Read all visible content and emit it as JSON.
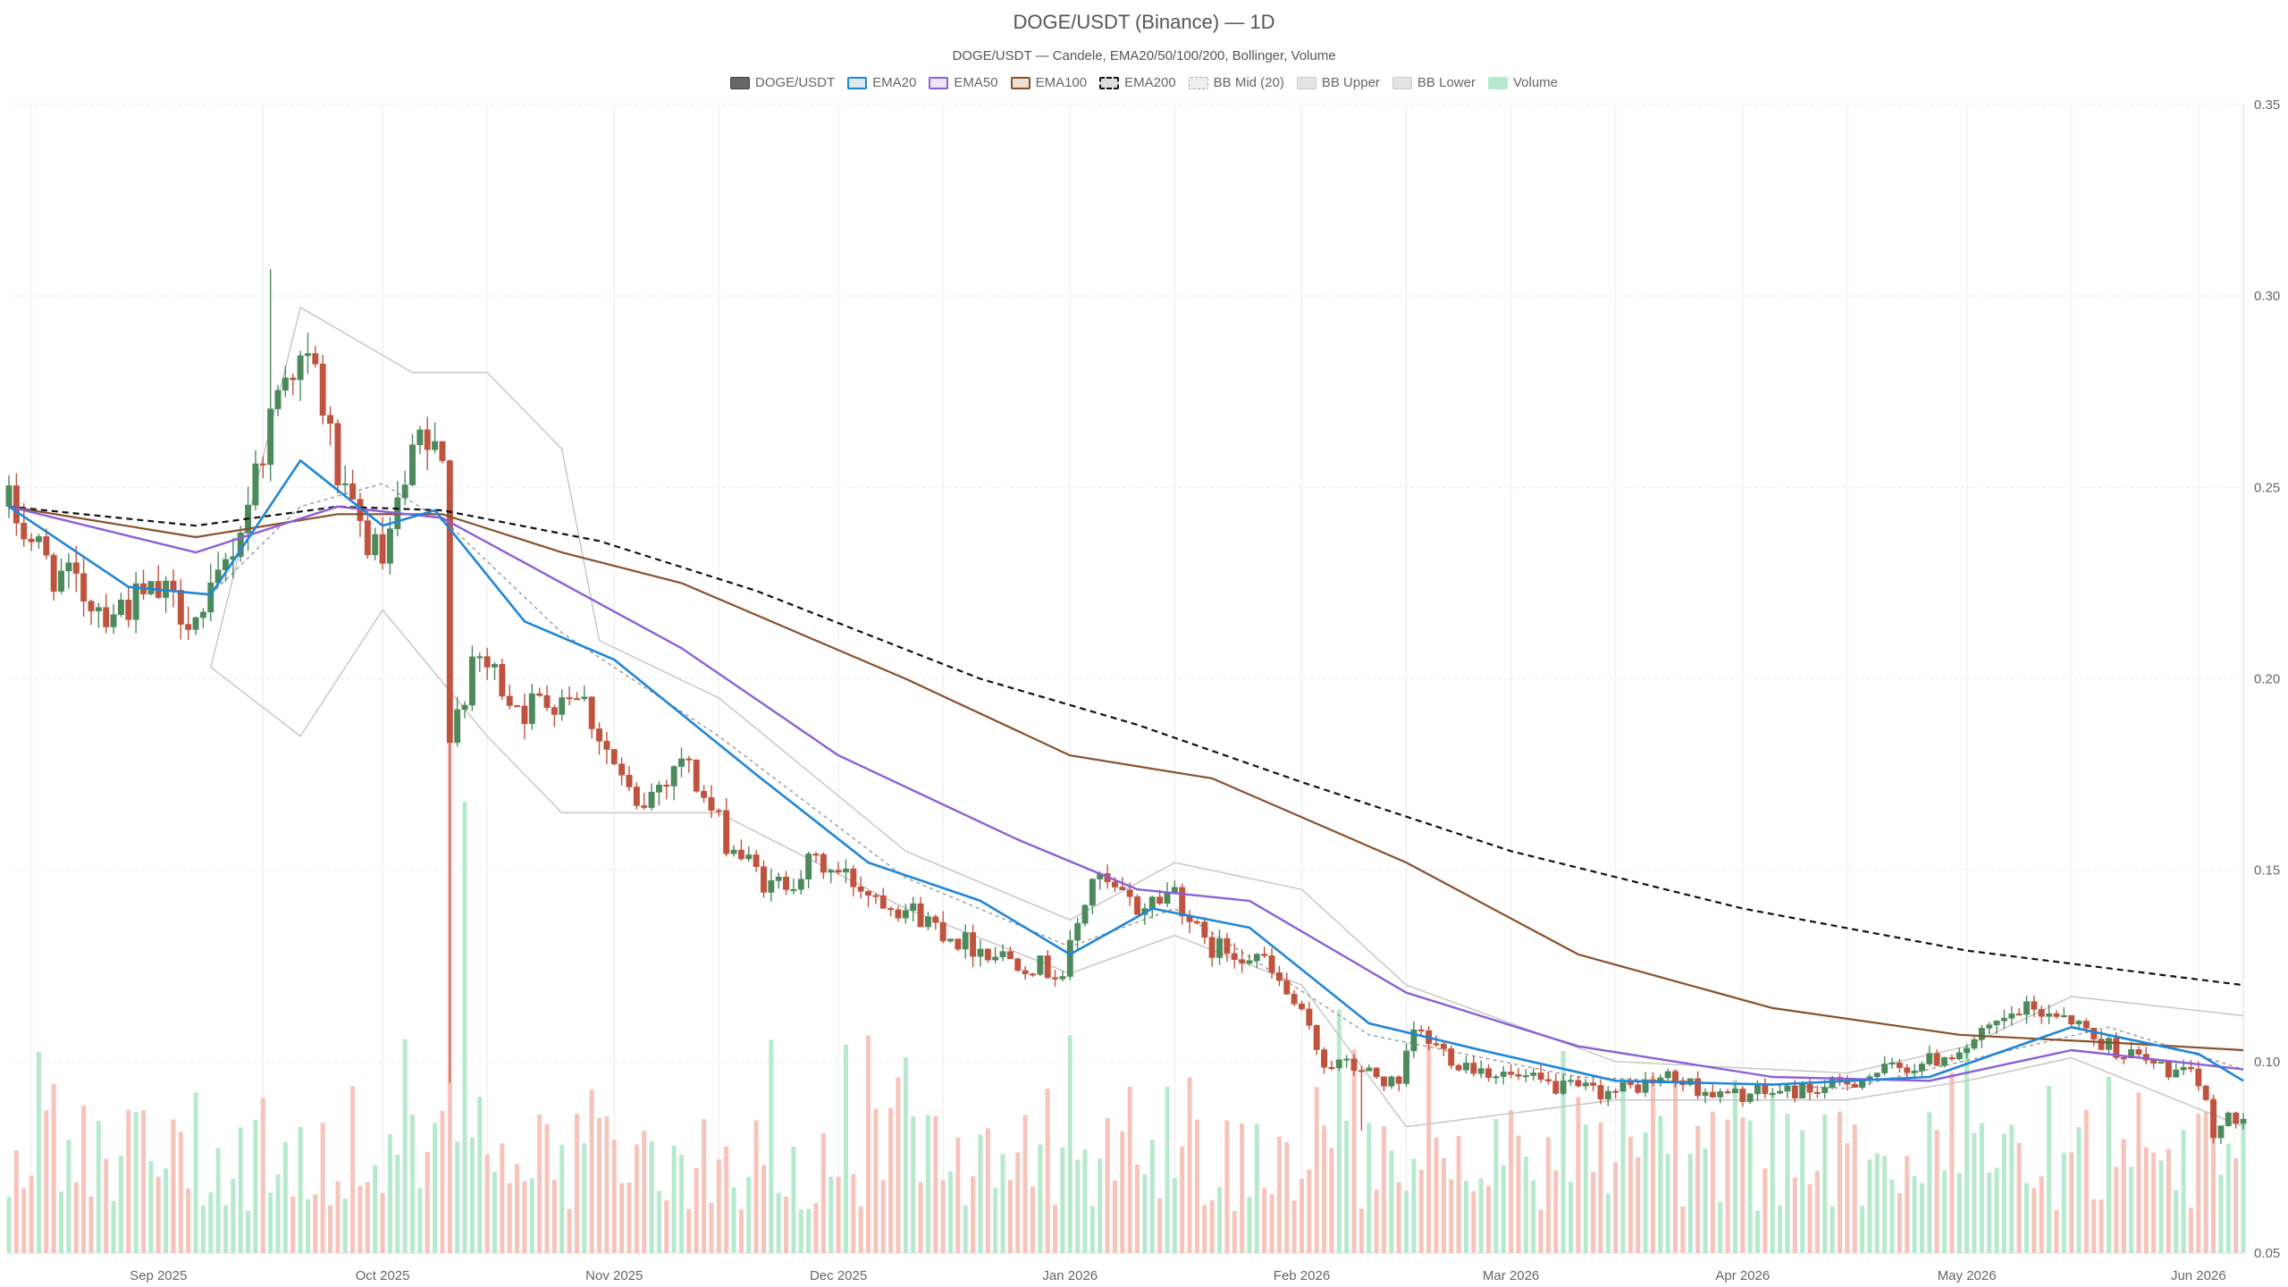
{
  "colors": {
    "up": "#4c8a5c",
    "down": "#c0533e",
    "upVolume": "#b7e9cc",
    "downVolume": "#f6c4bb",
    "ema20": "#1f86d8",
    "ema50": "#8c5fd6",
    "ema100": "#8a4f28",
    "ema200": "#111111",
    "bbMid": "#999999",
    "bbBand": "#c4c4c4",
    "grid": "#ececec"
  },
  "chart_data": {
    "type": "candlestick",
    "title": "DOGE/USDT (Binance) — 1D",
    "subtitle": "DOGE/USDT — Candele, EMA20/50/100/200, Bollinger, Volume",
    "legend": [
      {
        "label": "DOGE/USDT",
        "style": "candle"
      },
      {
        "label": "EMA20",
        "style": "ema20"
      },
      {
        "label": "EMA50",
        "style": "ema50"
      },
      {
        "label": "EMA100",
        "style": "ema100"
      },
      {
        "label": "EMA200",
        "style": "ema200"
      },
      {
        "label": "BB Mid (20)",
        "style": "bbmid"
      },
      {
        "label": "BB Upper",
        "style": "band"
      },
      {
        "label": "BB Lower",
        "style": "band"
      },
      {
        "label": "Volume",
        "style": "volume"
      }
    ],
    "legend_position": "top",
    "x_axis": {
      "type": "time",
      "start": "2025-08-12",
      "end": "2026-06-07",
      "labels": [
        "Sep 2025",
        "Oct 2025",
        "Nov 2025",
        "Dec 2025",
        "Jan 2026",
        "Feb 2026",
        "Mar 2026",
        "Apr 2026",
        "May 2026",
        "Jun 2026"
      ]
    },
    "y_axis": {
      "position": "right",
      "range": [
        0.05,
        0.35
      ],
      "ticks": [
        "0.05",
        "0.10",
        "0.15",
        "0.20",
        "0.25",
        "0.30",
        "0.35"
      ]
    },
    "grid": true,
    "price_path_close": [
      [
        "2025-08-12",
        0.245
      ],
      [
        "2025-08-18",
        0.228
      ],
      [
        "2025-08-25",
        0.218
      ],
      [
        "2025-09-01",
        0.222
      ],
      [
        "2025-09-07",
        0.215
      ],
      [
        "2025-09-12",
        0.24
      ],
      [
        "2025-09-16",
        0.268
      ],
      [
        "2025-09-18",
        0.283
      ],
      [
        "2025-09-22",
        0.28
      ],
      [
        "2025-09-26",
        0.245
      ],
      [
        "2025-10-01",
        0.23
      ],
      [
        "2025-10-06",
        0.262
      ],
      [
        "2025-10-09",
        0.255
      ],
      [
        "2025-10-10",
        0.188
      ],
      [
        "2025-10-14",
        0.205
      ],
      [
        "2025-10-20",
        0.192
      ],
      [
        "2025-10-27",
        0.198
      ],
      [
        "2025-11-04",
        0.165
      ],
      [
        "2025-11-10",
        0.18
      ],
      [
        "2025-11-16",
        0.158
      ],
      [
        "2025-11-22",
        0.145
      ],
      [
        "2025-11-28",
        0.152
      ],
      [
        "2025-12-05",
        0.145
      ],
      [
        "2025-12-12",
        0.138
      ],
      [
        "2025-12-18",
        0.131
      ],
      [
        "2025-12-26",
        0.126
      ],
      [
        "2025-12-31",
        0.123
      ],
      [
        "2026-01-04",
        0.148
      ],
      [
        "2026-01-10",
        0.14
      ],
      [
        "2026-01-15",
        0.145
      ],
      [
        "2026-01-19",
        0.13
      ],
      [
        "2026-01-26",
        0.128
      ],
      [
        "2026-01-31",
        0.115
      ],
      [
        "2026-02-04",
        0.1
      ],
      [
        "2026-02-09",
        0.098
      ],
      [
        "2026-02-14",
        0.093
      ],
      [
        "2026-02-16",
        0.108
      ],
      [
        "2026-02-22",
        0.1
      ],
      [
        "2026-03-01",
        0.096
      ],
      [
        "2026-03-08",
        0.093
      ],
      [
        "2026-03-15",
        0.092
      ],
      [
        "2026-03-22",
        0.096
      ],
      [
        "2026-03-29",
        0.091
      ],
      [
        "2026-04-05",
        0.092
      ],
      [
        "2026-04-12",
        0.093
      ],
      [
        "2026-04-19",
        0.097
      ],
      [
        "2026-04-26",
        0.1
      ],
      [
        "2026-05-02",
        0.105
      ],
      [
        "2026-05-08",
        0.113
      ],
      [
        "2026-05-14",
        0.113
      ],
      [
        "2026-05-18",
        0.106
      ],
      [
        "2026-05-25",
        0.1
      ],
      [
        "2026-06-01",
        0.095
      ],
      [
        "2026-06-03",
        0.082
      ],
      [
        "2026-06-07",
        0.087
      ]
    ],
    "series": [
      {
        "name": "EMA20",
        "points": [
          [
            "2025-08-12",
            0.245
          ],
          [
            "2025-08-28",
            0.224
          ],
          [
            "2025-09-08",
            0.222
          ],
          [
            "2025-09-20",
            0.257
          ],
          [
            "2025-10-01",
            0.24
          ],
          [
            "2025-10-08",
            0.244
          ],
          [
            "2025-10-20",
            0.215
          ],
          [
            "2025-11-01",
            0.205
          ],
          [
            "2025-11-20",
            0.175
          ],
          [
            "2025-12-05",
            0.152
          ],
          [
            "2025-12-20",
            0.142
          ],
          [
            "2026-01-01",
            0.128
          ],
          [
            "2026-01-12",
            0.14
          ],
          [
            "2026-01-25",
            0.135
          ],
          [
            "2026-02-10",
            0.11
          ],
          [
            "2026-02-25",
            0.103
          ],
          [
            "2026-03-15",
            0.095
          ],
          [
            "2026-04-05",
            0.094
          ],
          [
            "2026-04-26",
            0.096
          ],
          [
            "2026-05-15",
            0.109
          ],
          [
            "2026-06-01",
            0.102
          ],
          [
            "2026-06-07",
            0.095
          ]
        ]
      },
      {
        "name": "EMA50",
        "points": [
          [
            "2025-08-12",
            0.245
          ],
          [
            "2025-09-06",
            0.233
          ],
          [
            "2025-09-25",
            0.245
          ],
          [
            "2025-10-09",
            0.242
          ],
          [
            "2025-10-25",
            0.225
          ],
          [
            "2025-11-10",
            0.208
          ],
          [
            "2025-12-01",
            0.18
          ],
          [
            "2025-12-25",
            0.158
          ],
          [
            "2026-01-10",
            0.145
          ],
          [
            "2026-01-25",
            0.142
          ],
          [
            "2026-02-15",
            0.118
          ],
          [
            "2026-03-10",
            0.104
          ],
          [
            "2026-04-05",
            0.096
          ],
          [
            "2026-04-26",
            0.095
          ],
          [
            "2026-05-15",
            0.103
          ],
          [
            "2026-06-07",
            0.098
          ]
        ]
      },
      {
        "name": "EMA100",
        "points": [
          [
            "2025-08-12",
            0.245
          ],
          [
            "2025-09-06",
            0.237
          ],
          [
            "2025-09-25",
            0.243
          ],
          [
            "2025-10-09",
            0.243
          ],
          [
            "2025-10-25",
            0.233
          ],
          [
            "2025-11-10",
            0.225
          ],
          [
            "2025-12-10",
            0.2
          ],
          [
            "2026-01-01",
            0.18
          ],
          [
            "2026-01-20",
            0.174
          ],
          [
            "2026-02-15",
            0.152
          ],
          [
            "2026-03-10",
            0.128
          ],
          [
            "2026-04-05",
            0.114
          ],
          [
            "2026-04-30",
            0.107
          ],
          [
            "2026-05-20",
            0.105
          ],
          [
            "2026-06-07",
            0.103
          ]
        ]
      },
      {
        "name": "EMA200",
        "points": [
          [
            "2025-08-12",
            0.245
          ],
          [
            "2025-09-06",
            0.24
          ],
          [
            "2025-09-25",
            0.245
          ],
          [
            "2025-10-09",
            0.244
          ],
          [
            "2025-10-30",
            0.236
          ],
          [
            "2025-11-20",
            0.223
          ],
          [
            "2025-12-20",
            0.2
          ],
          [
            "2026-01-10",
            0.188
          ],
          [
            "2026-02-01",
            0.173
          ],
          [
            "2026-03-01",
            0.155
          ],
          [
            "2026-04-01",
            0.14
          ],
          [
            "2026-05-01",
            0.129
          ],
          [
            "2026-06-07",
            0.12
          ]
        ]
      },
      {
        "name": "BB Mid (20)",
        "points": [
          [
            "2025-09-08",
            0.222
          ],
          [
            "2025-09-20",
            0.245
          ],
          [
            "2025-10-01",
            0.251
          ],
          [
            "2025-10-10",
            0.24
          ],
          [
            "2025-10-25",
            0.212
          ],
          [
            "2025-11-15",
            0.185
          ],
          [
            "2025-12-10",
            0.148
          ],
          [
            "2026-01-01",
            0.13
          ],
          [
            "2026-01-15",
            0.14
          ],
          [
            "2026-02-10",
            0.107
          ],
          [
            "2026-03-10",
            0.096
          ],
          [
            "2026-04-15",
            0.093
          ],
          [
            "2026-05-20",
            0.109
          ],
          [
            "2026-06-07",
            0.098
          ]
        ]
      },
      {
        "name": "BB Upper",
        "points": [
          [
            "2025-09-08",
            0.203
          ],
          [
            "2025-09-20",
            0.297
          ],
          [
            "2025-10-05",
            0.28
          ],
          [
            "2025-10-15",
            0.28
          ],
          [
            "2025-10-25",
            0.26
          ],
          [
            "2025-10-30",
            0.21
          ],
          [
            "2025-11-15",
            0.195
          ],
          [
            "2025-12-10",
            0.155
          ],
          [
            "2026-01-01",
            0.137
          ],
          [
            "2026-01-15",
            0.152
          ],
          [
            "2026-02-01",
            0.145
          ],
          [
            "2026-02-15",
            0.12
          ],
          [
            "2026-03-15",
            0.1
          ],
          [
            "2026-04-15",
            0.097
          ],
          [
            "2026-05-01",
            0.104
          ],
          [
            "2026-05-15",
            0.117
          ],
          [
            "2026-06-07",
            0.112
          ]
        ]
      },
      {
        "name": "BB Lower",
        "points": [
          [
            "2025-09-08",
            0.203
          ],
          [
            "2025-09-20",
            0.185
          ],
          [
            "2025-10-01",
            0.218
          ],
          [
            "2025-10-15",
            0.185
          ],
          [
            "2025-10-25",
            0.165
          ],
          [
            "2025-11-15",
            0.165
          ],
          [
            "2025-12-10",
            0.14
          ],
          [
            "2026-01-01",
            0.123
          ],
          [
            "2026-01-15",
            0.133
          ],
          [
            "2026-02-01",
            0.12
          ],
          [
            "2026-02-15",
            0.083
          ],
          [
            "2026-03-15",
            0.09
          ],
          [
            "2026-04-15",
            0.09
          ],
          [
            "2026-05-01",
            0.095
          ],
          [
            "2026-05-15",
            0.101
          ],
          [
            "2026-06-07",
            0.083
          ]
        ]
      }
    ],
    "volume_spikes": [
      [
        "2025-09-15",
        0.3
      ],
      [
        "2025-10-10",
        0.97
      ],
      [
        "2025-10-12",
        0.72
      ],
      [
        "2026-01-01",
        0.42
      ],
      [
        "2026-02-06",
        0.47
      ],
      [
        "2026-05-01",
        0.4
      ],
      [
        "2026-05-20",
        0.34
      ],
      [
        "2026-06-03",
        0.3
      ]
    ]
  }
}
